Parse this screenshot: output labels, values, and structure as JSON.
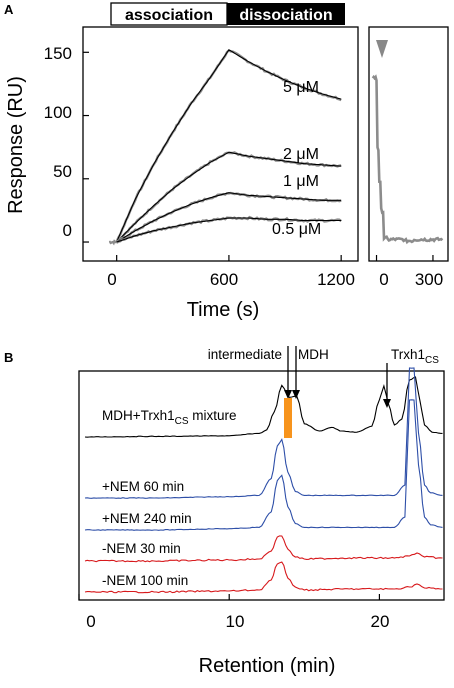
{
  "panel_a": {
    "letter": "A",
    "phases": {
      "association": "association",
      "dissociation": "dissociation"
    },
    "concentration_labels": [
      "5 μM",
      "2 μM",
      "1 μM",
      "0.5 μM"
    ]
  },
  "panel_b": {
    "letter": "B",
    "peak_labels": {
      "intermediate": "intermediate",
      "mdh": "MDH",
      "trx": "Trxh1",
      "trx_sub": "CS"
    },
    "mixture_label": {
      "main": "MDH+Trxh1",
      "sub": "CS",
      "suffix": " mixture"
    },
    "trace_labels": [
      "+NEM 60 min",
      "+NEM 240 min",
      "-NEM 30 min",
      "-NEM 100 min"
    ]
  },
  "colors": {
    "fit": "#000000",
    "raw": "#8c8c8c",
    "blue": "#2e4fa8",
    "red": "#d7191c",
    "highlight": "#f7941d",
    "marker": "#888888"
  },
  "chart_data": [
    {
      "type": "line",
      "title": "",
      "xlabel": "Time (s)",
      "ylabel": "Response (RU)",
      "xticks": [
        0,
        600,
        1200
      ],
      "yticks": [
        0,
        50,
        100,
        150
      ],
      "xlim": [
        -180,
        1290
      ],
      "ylim": [
        -15,
        170
      ],
      "series": [
        {
          "name": "5 μM",
          "x": [
            0,
            100,
            200,
            300,
            400,
            500,
            600,
            700,
            800,
            900,
            1000,
            1100,
            1200
          ],
          "y": [
            0,
            34,
            62,
            87,
            110,
            130,
            152,
            143,
            135,
            128,
            122,
            117,
            113
          ]
        },
        {
          "name": "2 μM",
          "x": [
            0,
            100,
            200,
            300,
            400,
            500,
            600,
            700,
            800,
            900,
            1000,
            1100,
            1200
          ],
          "y": [
            0,
            15,
            29,
            42,
            53,
            63,
            71,
            68,
            66,
            64,
            62,
            61,
            60
          ]
        },
        {
          "name": "1 μM",
          "x": [
            0,
            100,
            200,
            300,
            400,
            500,
            600,
            700,
            800,
            900,
            1000,
            1100,
            1200
          ],
          "y": [
            0,
            9,
            17,
            24,
            30,
            35,
            39,
            37,
            36,
            35,
            34,
            33,
            33
          ]
        },
        {
          "name": "0.5 μM",
          "x": [
            0,
            100,
            200,
            300,
            400,
            500,
            600,
            700,
            800,
            900,
            1000,
            1100,
            1200
          ],
          "y": [
            0,
            5,
            9,
            12,
            15,
            17,
            19,
            19,
            18,
            18,
            17,
            17,
            17
          ]
        }
      ]
    },
    {
      "type": "line",
      "title": "",
      "xlabel": "",
      "ylabel": "",
      "xticks": [
        0,
        300
      ],
      "xlim": [
        -40,
        380
      ],
      "ylim": [
        -15,
        170
      ],
      "series": [
        {
          "name": "",
          "x": [
            -20,
            -5,
            0,
            5,
            10,
            15,
            20,
            25,
            30,
            40,
            60,
            100,
            150,
            200,
            250,
            300,
            350
          ],
          "y": [
            130,
            130,
            128,
            75,
            73,
            48,
            47,
            26,
            24,
            3,
            2,
            2,
            1,
            2,
            2,
            2,
            2
          ]
        }
      ],
      "annotation": "triangle marker at x = 0"
    },
    {
      "type": "line",
      "title": "",
      "xlabel": "Retention (min)",
      "ylabel": "",
      "xticks": [
        0,
        10,
        20
      ],
      "xlim": [
        0,
        24.3
      ],
      "note": "stacked chromatograms, y values are relative absorbance (0–1) above each trace baseline",
      "series": [
        {
          "name": "MDH+Trxh1CS mixture",
          "x": [
            0.4,
            5,
            10,
            12,
            12.5,
            13,
            13.5,
            14,
            14.5,
            15,
            16,
            16.8,
            17.5,
            18.5,
            19.5,
            20,
            20.3,
            20.6,
            21,
            21.5,
            22,
            22.4,
            22.7,
            23,
            23.5,
            24.2
          ],
          "y": [
            0,
            0.01,
            0.02,
            0.06,
            0.12,
            0.42,
            0.86,
            0.66,
            0.68,
            0.22,
            0.1,
            0.16,
            0.1,
            0.08,
            0.18,
            0.62,
            0.85,
            0.55,
            0.2,
            0.3,
            0.95,
            1.0,
            0.6,
            0.2,
            0.08,
            0.06
          ]
        },
        {
          "name": "+NEM 60 min",
          "x": [
            0.4,
            5,
            10,
            12,
            12.8,
            13.2,
            13.5,
            13.9,
            14.4,
            15,
            18,
            21,
            21.7,
            22,
            22.3,
            22.6,
            23,
            23.4,
            24.2
          ],
          "y": [
            0,
            0,
            0.01,
            0.02,
            0.15,
            0.4,
            0.45,
            0.2,
            0.05,
            0.02,
            0.02,
            0.02,
            0.1,
            1.0,
            1.0,
            0.5,
            0.1,
            0.04,
            0.02
          ]
        },
        {
          "name": "+NEM 240 min",
          "x": [
            0.4,
            5,
            10,
            12,
            12.8,
            13.2,
            13.5,
            13.9,
            14.4,
            15,
            18,
            21,
            21.7,
            22,
            22.3,
            22.6,
            23,
            23.4,
            24.2
          ],
          "y": [
            0,
            0,
            0.01,
            0.02,
            0.14,
            0.38,
            0.42,
            0.18,
            0.05,
            0.02,
            0.02,
            0.02,
            0.1,
            1.0,
            1.0,
            0.5,
            0.1,
            0.04,
            0.02
          ]
        },
        {
          "name": "-NEM 30 min",
          "x": [
            0.4,
            5,
            10,
            12,
            12.8,
            13.2,
            13.5,
            13.9,
            14.4,
            15,
            18,
            21,
            22,
            22.5,
            23,
            24.2
          ],
          "y": [
            0,
            0,
            0.01,
            0.02,
            0.1,
            0.24,
            0.25,
            0.12,
            0.04,
            0.02,
            0.03,
            0.03,
            0.05,
            0.08,
            0.04,
            0.03
          ]
        },
        {
          "name": "-NEM 100 min",
          "x": [
            0.4,
            5,
            10,
            12,
            12.8,
            13.2,
            13.5,
            13.9,
            14.4,
            15,
            18,
            21,
            22,
            22.5,
            23,
            24.2
          ],
          "y": [
            0,
            0,
            0.01,
            0.02,
            0.12,
            0.28,
            0.3,
            0.14,
            0.05,
            0.02,
            0.03,
            0.03,
            0.05,
            0.08,
            0.04,
            0.03
          ]
        }
      ]
    }
  ]
}
